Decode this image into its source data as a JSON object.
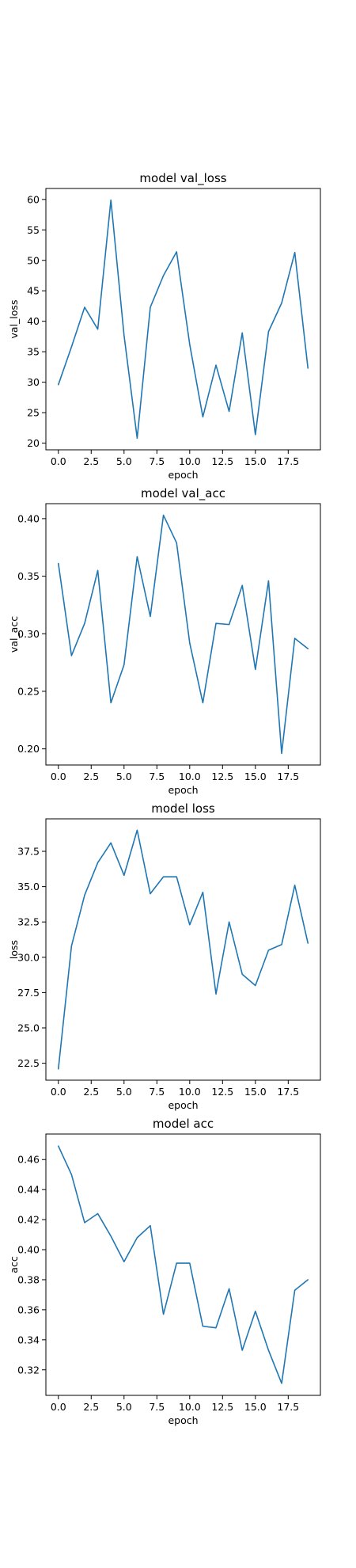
{
  "line_color": "#1f77b4",
  "chart_data": [
    {
      "type": "line",
      "title": "model val_loss",
      "xlabel": "epoch",
      "ylabel": "val_loss",
      "x": [
        0,
        1,
        2,
        3,
        4,
        5,
        6,
        7,
        8,
        9,
        10,
        11,
        12,
        13,
        14,
        15,
        16,
        17,
        18,
        19
      ],
      "values": [
        29.6,
        35.8,
        42.3,
        38.7,
        59.9,
        37.7,
        20.8,
        42.3,
        47.5,
        51.4,
        36.2,
        24.3,
        32.8,
        25.2,
        38.1,
        21.4,
        38.3,
        43.0,
        51.3,
        32.3
      ],
      "xlim": [
        -0.95,
        19.95
      ],
      "ylim": [
        18.9,
        61.8
      ],
      "xticks": [
        0.0,
        2.5,
        5.0,
        7.5,
        10.0,
        12.5,
        15.0,
        17.5
      ],
      "xtick_labels": [
        "0.0",
        "2.5",
        "5.0",
        "7.5",
        "10.0",
        "12.5",
        "15.0",
        "17.5"
      ],
      "yticks": [
        20,
        25,
        30,
        35,
        40,
        45,
        50,
        55,
        60
      ],
      "ytick_labels": [
        "20",
        "25",
        "30",
        "35",
        "40",
        "45",
        "50",
        "55",
        "60"
      ],
      "grid": false,
      "legend": "none"
    },
    {
      "type": "line",
      "title": "model val_acc",
      "xlabel": "epoch",
      "ylabel": "val_acc",
      "x": [
        0,
        1,
        2,
        3,
        4,
        5,
        6,
        7,
        8,
        9,
        10,
        11,
        12,
        13,
        14,
        15,
        16,
        17,
        18,
        19
      ],
      "values": [
        0.361,
        0.281,
        0.309,
        0.355,
        0.24,
        0.273,
        0.367,
        0.315,
        0.403,
        0.379,
        0.292,
        0.24,
        0.309,
        0.308,
        0.342,
        0.269,
        0.346,
        0.196,
        0.296,
        0.287
      ],
      "xlim": [
        -0.95,
        19.95
      ],
      "ylim": [
        0.186,
        0.413
      ],
      "xticks": [
        0.0,
        2.5,
        5.0,
        7.5,
        10.0,
        12.5,
        15.0,
        17.5
      ],
      "xtick_labels": [
        "0.0",
        "2.5",
        "5.0",
        "7.5",
        "10.0",
        "12.5",
        "15.0",
        "17.5"
      ],
      "yticks": [
        0.2,
        0.25,
        0.3,
        0.35,
        0.4
      ],
      "ytick_labels": [
        "0.20",
        "0.25",
        "0.30",
        "0.35",
        "0.40"
      ],
      "grid": false,
      "legend": "none"
    },
    {
      "type": "line",
      "title": "model loss",
      "xlabel": "epoch",
      "ylabel": "loss",
      "x": [
        0,
        1,
        2,
        3,
        4,
        5,
        6,
        7,
        8,
        9,
        10,
        11,
        12,
        13,
        14,
        15,
        16,
        17,
        18,
        19
      ],
      "values": [
        22.1,
        30.8,
        34.4,
        36.7,
        38.1,
        35.8,
        39.0,
        34.5,
        35.7,
        35.7,
        32.3,
        34.6,
        27.4,
        32.5,
        28.8,
        28.0,
        30.5,
        30.9,
        35.1,
        31.0
      ],
      "xlim": [
        -0.95,
        19.95
      ],
      "ylim": [
        21.3,
        39.8
      ],
      "xticks": [
        0.0,
        2.5,
        5.0,
        7.5,
        10.0,
        12.5,
        15.0,
        17.5
      ],
      "xtick_labels": [
        "0.0",
        "2.5",
        "5.0",
        "7.5",
        "10.0",
        "12.5",
        "15.0",
        "17.5"
      ],
      "yticks": [
        22.5,
        25.0,
        27.5,
        30.0,
        32.5,
        35.0,
        37.5
      ],
      "ytick_labels": [
        "22.5",
        "25.0",
        "27.5",
        "30.0",
        "32.5",
        "35.0",
        "37.5"
      ],
      "grid": false,
      "legend": "none"
    },
    {
      "type": "line",
      "title": "model acc",
      "xlabel": "epoch",
      "ylabel": "acc",
      "x": [
        0,
        1,
        2,
        3,
        4,
        5,
        6,
        7,
        8,
        9,
        10,
        11,
        12,
        13,
        14,
        15,
        16,
        17,
        18,
        19
      ],
      "values": [
        0.469,
        0.45,
        0.418,
        0.424,
        0.409,
        0.392,
        0.408,
        0.416,
        0.357,
        0.391,
        0.391,
        0.349,
        0.348,
        0.374,
        0.333,
        0.359,
        0.333,
        0.311,
        0.373,
        0.38
      ],
      "xlim": [
        -0.95,
        19.95
      ],
      "ylim": [
        0.303,
        0.477
      ],
      "xticks": [
        0.0,
        2.5,
        5.0,
        7.5,
        10.0,
        12.5,
        15.0,
        17.5
      ],
      "xtick_labels": [
        "0.0",
        "2.5",
        "5.0",
        "7.5",
        "10.0",
        "12.5",
        "15.0",
        "17.5"
      ],
      "yticks": [
        0.32,
        0.34,
        0.36,
        0.38,
        0.4,
        0.42,
        0.44,
        0.46
      ],
      "ytick_labels": [
        "0.32",
        "0.34",
        "0.36",
        "0.38",
        "0.40",
        "0.42",
        "0.44",
        "0.46"
      ],
      "grid": false,
      "legend": "none"
    }
  ]
}
